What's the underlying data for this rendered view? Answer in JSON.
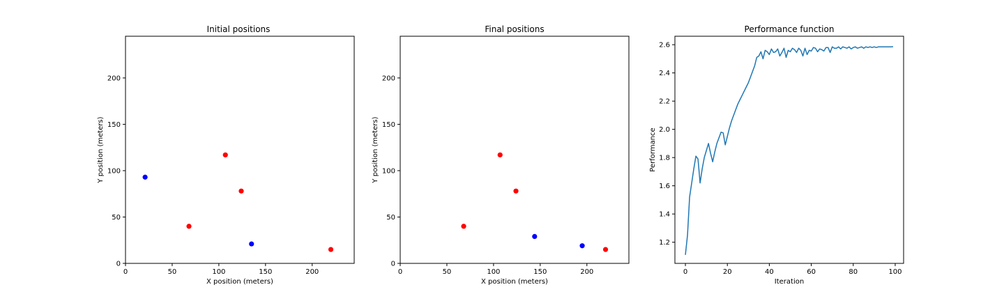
{
  "chart_data": [
    {
      "type": "scatter",
      "title": "Initial positions",
      "xlabel": "X position (meters)",
      "ylabel": "Y position (meters)",
      "xlim": [
        0,
        245
      ],
      "ylim": [
        0,
        245
      ],
      "xticks": [
        0,
        50,
        100,
        150,
        200
      ],
      "yticks": [
        0,
        50,
        100,
        150,
        200
      ],
      "grid": false,
      "series": [
        {
          "color": "#ff0000",
          "points": [
            [
              68,
              40
            ],
            [
              107,
              117
            ],
            [
              124,
              78
            ],
            [
              220,
              15
            ]
          ]
        },
        {
          "color": "#0000ff",
          "points": [
            [
              21,
              93
            ],
            [
              135,
              21
            ]
          ]
        }
      ]
    },
    {
      "type": "scatter",
      "title": "Final positions",
      "xlabel": "X position (meters)",
      "ylabel": "Y position (meters)",
      "xlim": [
        0,
        245
      ],
      "ylim": [
        0,
        245
      ],
      "xticks": [
        0,
        50,
        100,
        150,
        200
      ],
      "yticks": [
        0,
        50,
        100,
        150,
        200
      ],
      "grid": false,
      "series": [
        {
          "color": "#ff0000",
          "points": [
            [
              68,
              40
            ],
            [
              107,
              117
            ],
            [
              124,
              78
            ],
            [
              220,
              15
            ]
          ]
        },
        {
          "color": "#0000ff",
          "points": [
            [
              144,
              29
            ],
            [
              195,
              19
            ]
          ]
        }
      ]
    },
    {
      "type": "line",
      "title": "Performance function",
      "xlabel": "Iteration",
      "ylabel": "Performance",
      "xlim": [
        -5,
        104
      ],
      "ylim": [
        1.05,
        2.66
      ],
      "xticks": [
        0,
        20,
        40,
        60,
        80,
        100
      ],
      "yticks": [
        "1.2",
        "1.4",
        "1.6",
        "1.8",
        "2.0",
        "2.2",
        "2.4",
        "2.6"
      ],
      "grid": false,
      "series": [
        {
          "color": "#1f77b4",
          "x": [
            0,
            1,
            2,
            3,
            4,
            5,
            6,
            7,
            8,
            9,
            10,
            11,
            12,
            13,
            14,
            15,
            16,
            17,
            18,
            19,
            20,
            21,
            22,
            23,
            24,
            25,
            26,
            27,
            28,
            29,
            30,
            31,
            32,
            33,
            34,
            35,
            36,
            37,
            38,
            39,
            40,
            41,
            42,
            43,
            44,
            45,
            46,
            47,
            48,
            49,
            50,
            51,
            52,
            53,
            54,
            55,
            56,
            57,
            58,
            59,
            60,
            61,
            62,
            63,
            64,
            65,
            66,
            67,
            68,
            69,
            70,
            71,
            72,
            73,
            74,
            75,
            76,
            77,
            78,
            79,
            80,
            81,
            82,
            83,
            84,
            85,
            86,
            87,
            88,
            89,
            90,
            91,
            92,
            93,
            94,
            95,
            96,
            97,
            98,
            99
          ],
          "y": [
            1.11,
            1.25,
            1.52,
            1.62,
            1.72,
            1.81,
            1.79,
            1.62,
            1.72,
            1.8,
            1.85,
            1.9,
            1.83,
            1.77,
            1.84,
            1.9,
            1.94,
            1.98,
            1.975,
            1.89,
            1.95,
            2.01,
            2.06,
            2.1,
            2.14,
            2.18,
            2.21,
            2.24,
            2.27,
            2.3,
            2.33,
            2.37,
            2.41,
            2.45,
            2.51,
            2.52,
            2.55,
            2.5,
            2.56,
            2.55,
            2.53,
            2.57,
            2.545,
            2.55,
            2.57,
            2.52,
            2.545,
            2.575,
            2.51,
            2.56,
            2.55,
            2.575,
            2.565,
            2.545,
            2.575,
            2.56,
            2.52,
            2.575,
            2.53,
            2.56,
            2.555,
            2.58,
            2.575,
            2.55,
            2.57,
            2.565,
            2.555,
            2.58,
            2.58,
            2.545,
            2.585,
            2.575,
            2.575,
            2.585,
            2.57,
            2.585,
            2.58,
            2.575,
            2.585,
            2.57,
            2.58,
            2.585,
            2.575,
            2.58,
            2.585,
            2.575,
            2.585,
            2.58,
            2.585,
            2.58,
            2.585,
            2.58,
            2.585,
            2.585,
            2.585,
            2.585,
            2.585,
            2.585,
            2.585,
            2.586
          ]
        }
      ]
    }
  ]
}
